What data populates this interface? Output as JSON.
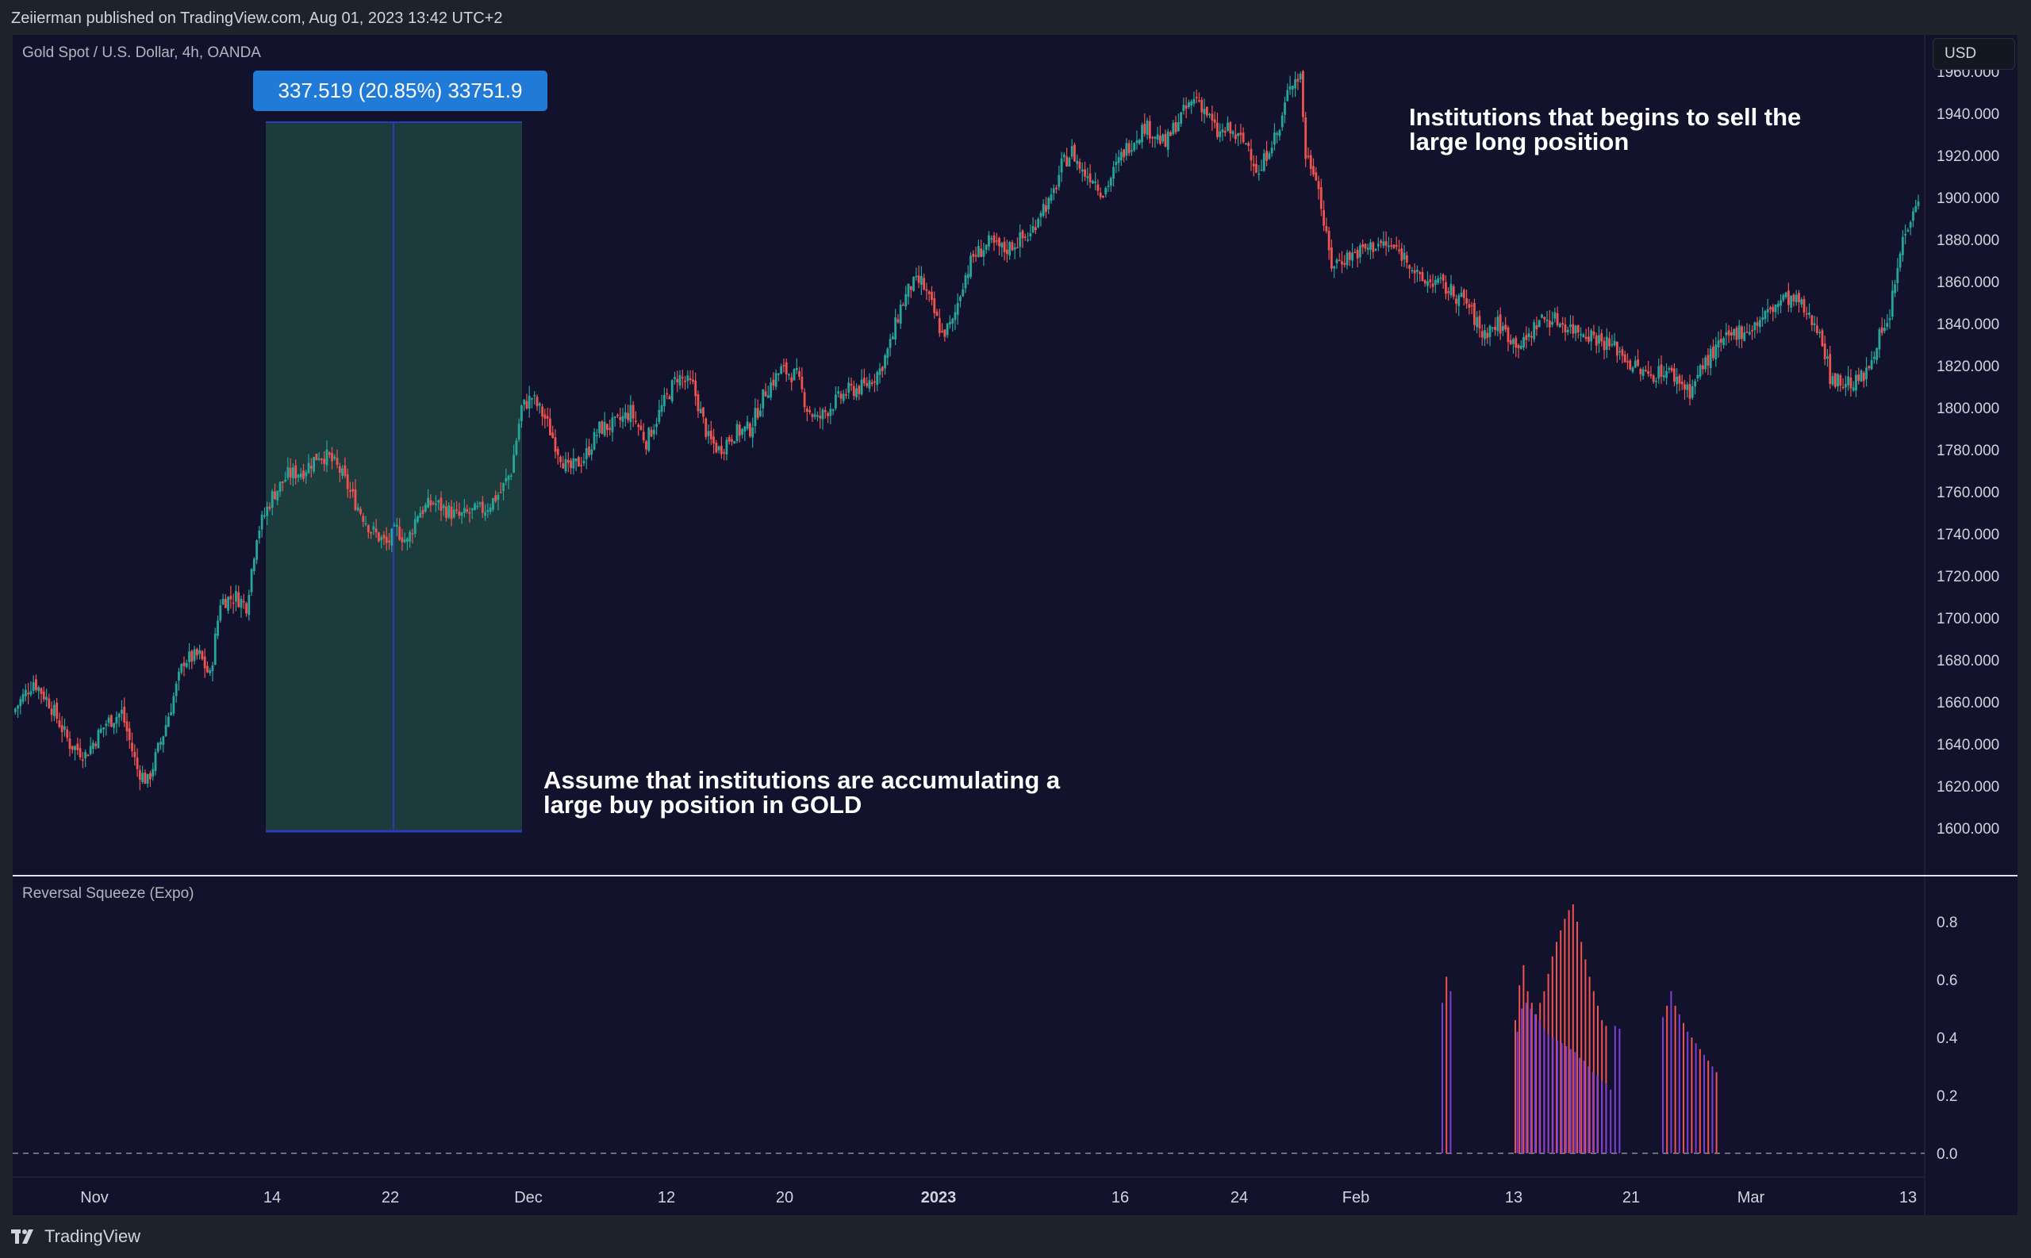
{
  "header": {
    "published_text": "Zeiierman published on TradingView.com, Aug 01, 2023 13:42 UTC+2"
  },
  "chart": {
    "symbol_title": "Gold Spot / U.S. Dollar, 4h, OANDA",
    "currency_button": "USD",
    "measure_label": "337.519 (20.85%) 33751.9",
    "annotation_top": [
      "Institutions that begins to sell the",
      "large long position"
    ],
    "annotation_bottom": [
      "Assume that institutions are accumulating a",
      "large buy position in GOLD"
    ],
    "colors": {
      "background": "#12122c",
      "up": "#26a69a",
      "down": "#ef5350",
      "measure_fill": "#1c3b3c",
      "measure_line": "#2a3bb8",
      "squeeze_red": "#ef5350",
      "squeeze_purple": "#7b3fd6"
    }
  },
  "chart_data": [
    {
      "type": "candlestick",
      "title": "Gold Spot / U.S. Dollar, 4h, OANDA",
      "y_ticks": [
        "1960.000",
        "1940.000",
        "1920.000",
        "1900.000",
        "1880.000",
        "1860.000",
        "1840.000",
        "1820.000",
        "1800.000",
        "1780.000",
        "1760.000",
        "1740.000",
        "1720.000",
        "1700.000",
        "1680.000",
        "1660.000",
        "1640.000",
        "1620.000",
        "1600.000"
      ],
      "ylim": [
        1600,
        1966
      ],
      "x_ticks": [
        "Nov",
        "14",
        "22",
        "Dec",
        "12",
        "20",
        "2023",
        "16",
        "24",
        "Feb",
        "13",
        "21",
        "Mar",
        "13"
      ],
      "x_tick_bold": [
        "2023"
      ],
      "close_path": [
        [
          0,
          1655
        ],
        [
          8,
          1670
        ],
        [
          14,
          1660
        ],
        [
          22,
          1640
        ],
        [
          28,
          1635
        ],
        [
          36,
          1650
        ],
        [
          42,
          1655
        ],
        [
          48,
          1628
        ],
        [
          52,
          1622
        ],
        [
          58,
          1645
        ],
        [
          66,
          1680
        ],
        [
          72,
          1682
        ],
        [
          76,
          1672
        ],
        [
          80,
          1708
        ],
        [
          86,
          1710
        ],
        [
          90,
          1706
        ],
        [
          94,
          1740
        ],
        [
          100,
          1758
        ],
        [
          106,
          1768
        ],
        [
          112,
          1770
        ],
        [
          118,
          1778
        ],
        [
          122,
          1776
        ],
        [
          126,
          1770
        ],
        [
          132,
          1755
        ],
        [
          138,
          1742
        ],
        [
          144,
          1735
        ],
        [
          148,
          1742
        ],
        [
          152,
          1736
        ],
        [
          156,
          1750
        ],
        [
          162,
          1755
        ],
        [
          166,
          1752
        ],
        [
          172,
          1748
        ],
        [
          176,
          1750
        ],
        [
          182,
          1752
        ],
        [
          188,
          1760
        ],
        [
          192,
          1770
        ],
        [
          196,
          1800
        ],
        [
          200,
          1805
        ],
        [
          205,
          1795
        ],
        [
          210,
          1780
        ],
        [
          214,
          1770
        ],
        [
          220,
          1776
        ],
        [
          226,
          1790
        ],
        [
          232,
          1792
        ],
        [
          238,
          1798
        ],
        [
          244,
          1784
        ],
        [
          250,
          1800
        ],
        [
          256,
          1815
        ],
        [
          262,
          1810
        ],
        [
          268,
          1785
        ],
        [
          272,
          1780
        ],
        [
          278,
          1788
        ],
        [
          284,
          1790
        ],
        [
          290,
          1808
        ],
        [
          296,
          1818
        ],
        [
          302,
          1815
        ],
        [
          306,
          1800
        ],
        [
          310,
          1794
        ],
        [
          316,
          1802
        ],
        [
          322,
          1808
        ],
        [
          328,
          1810
        ],
        [
          334,
          1818
        ],
        [
          338,
          1830
        ],
        [
          342,
          1848
        ],
        [
          346,
          1858
        ],
        [
          350,
          1860
        ],
        [
          354,
          1848
        ],
        [
          358,
          1835
        ],
        [
          362,
          1840
        ],
        [
          366,
          1860
        ],
        [
          370,
          1872
        ],
        [
          376,
          1878
        ],
        [
          382,
          1875
        ],
        [
          388,
          1880
        ],
        [
          392,
          1882
        ],
        [
          396,
          1895
        ],
        [
          400,
          1898
        ],
        [
          404,
          1915
        ],
        [
          408,
          1922
        ],
        [
          412,
          1912
        ],
        [
          416,
          1910
        ],
        [
          420,
          1902
        ],
        [
          424,
          1912
        ],
        [
          428,
          1922
        ],
        [
          432,
          1928
        ],
        [
          436,
          1934
        ],
        [
          440,
          1930
        ],
        [
          444,
          1925
        ],
        [
          448,
          1935
        ],
        [
          452,
          1942
        ],
        [
          456,
          1948
        ],
        [
          460,
          1940
        ],
        [
          464,
          1930
        ],
        [
          468,
          1932
        ],
        [
          472,
          1928
        ],
        [
          476,
          1925
        ],
        [
          480,
          1910
        ],
        [
          484,
          1925
        ],
        [
          488,
          1932
        ],
        [
          492,
          1955
        ],
        [
          496,
          1958
        ],
        [
          498,
          1920
        ],
        [
          502,
          1912
        ],
        [
          506,
          1880
        ],
        [
          508,
          1868
        ],
        [
          514,
          1872
        ],
        [
          520,
          1875
        ],
        [
          526,
          1878
        ],
        [
          532,
          1876
        ],
        [
          538,
          1870
        ],
        [
          542,
          1860
        ],
        [
          548,
          1860
        ],
        [
          554,
          1855
        ],
        [
          560,
          1850
        ],
        [
          566,
          1835
        ],
        [
          572,
          1840
        ],
        [
          578,
          1832
        ],
        [
          582,
          1830
        ],
        [
          588,
          1842
        ],
        [
          594,
          1842
        ],
        [
          600,
          1838
        ],
        [
          606,
          1836
        ],
        [
          612,
          1832
        ],
        [
          618,
          1828
        ],
        [
          624,
          1820
        ],
        [
          630,
          1815
        ],
        [
          636,
          1818
        ],
        [
          640,
          1815
        ],
        [
          646,
          1808
        ],
        [
          652,
          1822
        ],
        [
          658,
          1830
        ],
        [
          664,
          1836
        ],
        [
          670,
          1838
        ],
        [
          676,
          1845
        ],
        [
          682,
          1852
        ],
        [
          688,
          1850
        ],
        [
          692,
          1842
        ],
        [
          696,
          1838
        ],
        [
          700,
          1815
        ],
        [
          704,
          1812
        ],
        [
          710,
          1812
        ],
        [
          714,
          1816
        ],
        [
          718,
          1832
        ],
        [
          722,
          1838
        ],
        [
          728,
          1880
        ],
        [
          732,
          1896
        ],
        [
          734,
          1900
        ]
      ],
      "x_domain": [
        0,
        734
      ]
    },
    {
      "type": "bar",
      "title": "Reversal Squeeze (Expo)",
      "y_ticks": [
        "0.8",
        "0.6",
        "0.4",
        "0.2",
        "0.0"
      ],
      "ylim": [
        0,
        0.88
      ],
      "groups": [
        {
          "start_date_index": 545,
          "values": [
            0.52,
            0.61,
            0.56
          ],
          "color": "mixed"
        },
        {
          "start_date_index": 573,
          "values": [
            0.46,
            0.58,
            0.65,
            0.56,
            0.52,
            0.48,
            0.52,
            0.56,
            0.62,
            0.68,
            0.73,
            0.77,
            0.81,
            0.84,
            0.86,
            0.8,
            0.73,
            0.67,
            0.61,
            0.56,
            0.51,
            0.46,
            0.44
          ],
          "color": "red"
        },
        {
          "start_date_index": 573,
          "values": [
            0.42,
            0.5,
            0.52,
            0.5,
            0.48,
            0.46,
            0.43,
            0.41,
            0.4,
            0.39,
            0.38,
            0.37,
            0.36,
            0.35,
            0.33,
            0.32,
            0.3,
            0.28,
            0.27,
            0.25,
            0.24,
            0.22,
            0.44,
            0.43
          ],
          "color": "purple"
        },
        {
          "start_date_index": 637,
          "values": [
            0.47,
            0.51,
            0.56,
            0.51,
            0.48,
            0.45,
            0.42,
            0.4,
            0.38,
            0.36,
            0.34,
            0.32,
            0.3,
            0.28
          ],
          "color": "mixed"
        }
      ]
    }
  ],
  "footer": {
    "logo_text": "TradingView"
  }
}
